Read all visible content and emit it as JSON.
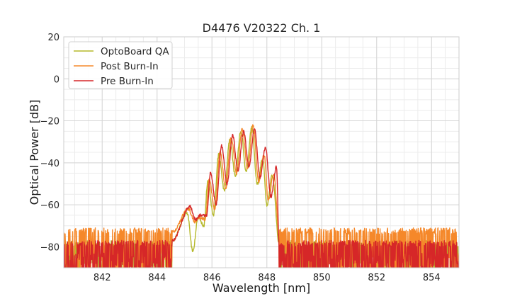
{
  "chart_data": {
    "type": "line",
    "title": "D4476 V20322 Ch. 1",
    "xlabel": "Wavelength [nm]",
    "ylabel": "Optical Power [dB]",
    "xlim": [
      840.6,
      855.0
    ],
    "ylim": [
      -90,
      20
    ],
    "xticks": [
      "842",
      "844",
      "846",
      "848",
      "850",
      "852",
      "854"
    ],
    "xtick_values": [
      842,
      844,
      846,
      848,
      850,
      852,
      854
    ],
    "yticks": [
      "20",
      "0",
      "−20",
      "−40",
      "−60",
      "−80"
    ],
    "ytick_values": [
      20,
      0,
      -20,
      -40,
      -60,
      -80
    ],
    "x_minor_step": 0.5,
    "y_minor_step": 5,
    "grid": true,
    "legend_position": "top-left",
    "noise_floor": {
      "x_start": 840.6,
      "x_end": 855.0,
      "signal_start": 844.6,
      "signal_end": 848.4
    },
    "series": [
      {
        "name": "OptoBoard QA",
        "color": "#b5b82a",
        "noise_level": -79,
        "peaks": [
          {
            "x": 845.1,
            "y": -64
          },
          {
            "x": 845.5,
            "y": -66
          },
          {
            "x": 845.85,
            "y": -49
          },
          {
            "x": 846.25,
            "y": -36
          },
          {
            "x": 846.65,
            "y": -29
          },
          {
            "x": 847.05,
            "y": -25
          },
          {
            "x": 847.45,
            "y": -23
          },
          {
            "x": 847.85,
            "y": -38
          },
          {
            "x": 848.2,
            "y": -46
          }
        ],
        "troughs": [
          {
            "x": 845.3,
            "y": -82
          },
          {
            "x": 845.7,
            "y": -70
          },
          {
            "x": 846.05,
            "y": -65
          },
          {
            "x": 846.45,
            "y": -53
          },
          {
            "x": 846.85,
            "y": -46
          },
          {
            "x": 847.25,
            "y": -44
          },
          {
            "x": 847.65,
            "y": -50
          },
          {
            "x": 848.0,
            "y": -60
          }
        ]
      },
      {
        "name": "Post Burn-In",
        "color": "#f5882a",
        "noise_level": -75,
        "peaks": [
          {
            "x": 845.15,
            "y": -62
          },
          {
            "x": 845.55,
            "y": -66
          },
          {
            "x": 845.9,
            "y": -48
          },
          {
            "x": 846.3,
            "y": -35
          },
          {
            "x": 846.7,
            "y": -28
          },
          {
            "x": 847.1,
            "y": -24
          },
          {
            "x": 847.5,
            "y": -22
          },
          {
            "x": 847.9,
            "y": -36
          },
          {
            "x": 848.25,
            "y": -45
          }
        ],
        "troughs": [
          {
            "x": 845.35,
            "y": -68
          },
          {
            "x": 845.75,
            "y": -67
          },
          {
            "x": 846.1,
            "y": -62
          },
          {
            "x": 846.5,
            "y": -52
          },
          {
            "x": 846.9,
            "y": -45
          },
          {
            "x": 847.3,
            "y": -43
          },
          {
            "x": 847.7,
            "y": -49
          },
          {
            "x": 848.05,
            "y": -58
          }
        ]
      },
      {
        "name": "Pre Burn-In",
        "color": "#d62728",
        "noise_level": -79,
        "peaks": [
          {
            "x": 845.2,
            "y": -61
          },
          {
            "x": 845.6,
            "y": -65
          },
          {
            "x": 845.95,
            "y": -45
          },
          {
            "x": 846.35,
            "y": -32
          },
          {
            "x": 846.75,
            "y": -27
          },
          {
            "x": 847.15,
            "y": -25
          },
          {
            "x": 847.55,
            "y": -24
          },
          {
            "x": 847.95,
            "y": -33
          },
          {
            "x": 848.35,
            "y": -42
          }
        ],
        "troughs": [
          {
            "x": 845.4,
            "y": -67
          },
          {
            "x": 845.8,
            "y": -65
          },
          {
            "x": 846.15,
            "y": -60
          },
          {
            "x": 846.55,
            "y": -50
          },
          {
            "x": 846.95,
            "y": -44
          },
          {
            "x": 847.35,
            "y": -42
          },
          {
            "x": 847.75,
            "y": -47
          },
          {
            "x": 848.15,
            "y": -56
          }
        ]
      }
    ]
  }
}
